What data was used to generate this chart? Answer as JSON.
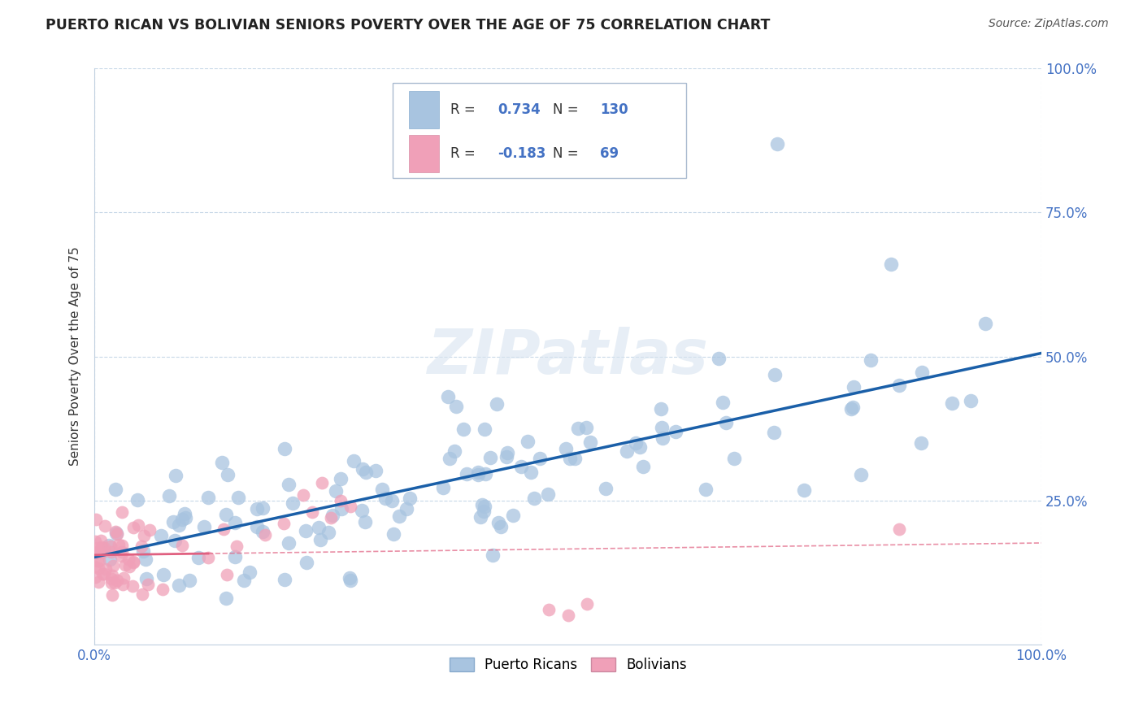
{
  "title": "PUERTO RICAN VS BOLIVIAN SENIORS POVERTY OVER THE AGE OF 75 CORRELATION CHART",
  "source": "Source: ZipAtlas.com",
  "ylabel": "Seniors Poverty Over the Age of 75",
  "xlim": [
    0,
    1.0
  ],
  "ylim": [
    0,
    1.0
  ],
  "ytick_positions": [
    0.25,
    0.5,
    0.75,
    1.0
  ],
  "yticklabels_right": [
    "25.0%",
    "50.0%",
    "75.0%",
    "100.0%"
  ],
  "pr_R": 0.734,
  "pr_N": 130,
  "bo_R": -0.183,
  "bo_N": 69,
  "pr_color": "#a8c4e0",
  "bo_color": "#f0a0b8",
  "pr_line_color": "#1a5fa8",
  "bo_line_color": "#e06080",
  "watermark": "ZIPatlas",
  "background_color": "#ffffff",
  "grid_color": "#c8d8e8",
  "legend_color": "#4472c4",
  "title_color": "#222222",
  "source_color": "#555555"
}
